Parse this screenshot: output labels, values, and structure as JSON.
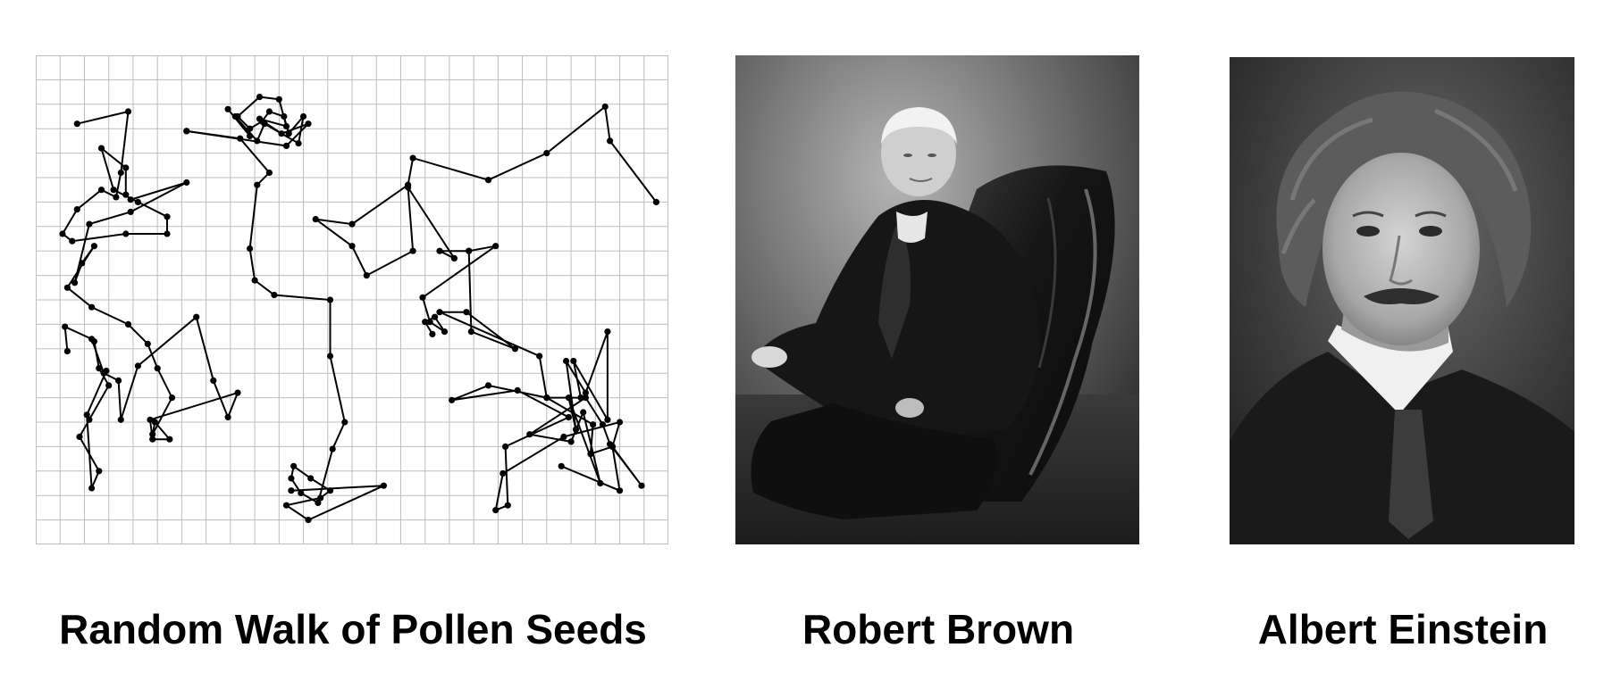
{
  "captions": {
    "walk": "Random Walk of Pollen Seeds",
    "brown": "Robert Brown",
    "einstein": "Albert Einstein"
  },
  "colors": {
    "grid": "#bdbdbd",
    "path": "#000000",
    "photo_dark": "#1a1a1a",
    "photo_mid": "#6e6e6e",
    "photo_light": "#cfcfcf"
  },
  "walk": {
    "grid_columns": 26,
    "grid_rows": 20,
    "paths": [
      [
        [
          1.7,
          2.8
        ],
        [
          3.8,
          2.3
        ],
        [
          3.5,
          4.8
        ],
        [
          3.3,
          5.8
        ],
        [
          2.7,
          5.5
        ],
        [
          1.7,
          6.3
        ],
        [
          1.1,
          7.3
        ],
        [
          1.5,
          7.6
        ],
        [
          3.7,
          7.3
        ],
        [
          5.4,
          7.3
        ],
        [
          5.4,
          6.6
        ],
        [
          4.2,
          6.0
        ],
        [
          3.2,
          5.5
        ],
        [
          2.7,
          3.8
        ],
        [
          3.7,
          4.6
        ],
        [
          3.7,
          5.7
        ],
        [
          3.9,
          5.9
        ],
        [
          6.2,
          5.2
        ],
        [
          3.9,
          6.4
        ],
        [
          2.2,
          6.9
        ],
        [
          1.6,
          9.3
        ],
        [
          1.9,
          8.5
        ],
        [
          2.4,
          7.8
        ],
        [
          1.3,
          9.5
        ],
        [
          2.3,
          10.3
        ],
        [
          3.8,
          11.0
        ],
        [
          4.6,
          11.8
        ],
        [
          5.0,
          12.8
        ],
        [
          5.6,
          14.0
        ],
        [
          4.8,
          15.5
        ],
        [
          4.9,
          15.0
        ],
        [
          5.5,
          15.7
        ],
        [
          4.8,
          15.7
        ],
        [
          4.7,
          14.9
        ],
        [
          8.3,
          13.8
        ],
        [
          7.9,
          14.8
        ],
        [
          7.3,
          13.3
        ],
        [
          6.6,
          10.7
        ],
        [
          4.2,
          12.7
        ],
        [
          3.5,
          14.9
        ],
        [
          3.4,
          13.3
        ],
        [
          2.8,
          13.0
        ],
        [
          2.3,
          11.6
        ],
        [
          1.2,
          11.1
        ],
        [
          1.3,
          12.1
        ]
      ],
      [
        [
          2.4,
          11.7
        ],
        [
          2.6,
          12.8
        ],
        [
          3.0,
          13.5
        ],
        [
          2.2,
          14.9
        ],
        [
          1.8,
          15.6
        ],
        [
          2.6,
          17.0
        ],
        [
          2.3,
          17.7
        ],
        [
          2.1,
          14.7
        ],
        [
          2.9,
          12.9
        ]
      ],
      [
        [
          7.9,
          2.2
        ],
        [
          8.8,
          3.3
        ],
        [
          8.2,
          2.5
        ],
        [
          9.1,
          3.5
        ],
        [
          9.4,
          2.8
        ],
        [
          10.8,
          3.6
        ],
        [
          11.0,
          2.5
        ],
        [
          10.4,
          3.2
        ],
        [
          10.2,
          2.5
        ],
        [
          9.6,
          2.3
        ],
        [
          9.3,
          2.7
        ],
        [
          8.8,
          3.0
        ],
        [
          8.3,
          2.5
        ],
        [
          9.2,
          1.7
        ],
        [
          10.0,
          1.8
        ],
        [
          10.3,
          2.9
        ],
        [
          9.2,
          2.6
        ],
        [
          10.1,
          3.2
        ],
        [
          11.2,
          2.8
        ],
        [
          10.3,
          3.7
        ],
        [
          6.2,
          3.1
        ]
      ],
      [
        [
          6.2,
          3.1
        ],
        [
          8.4,
          3.4
        ],
        [
          9.6,
          4.8
        ],
        [
          9.1,
          5.3
        ],
        [
          8.8,
          7.9
        ],
        [
          9.0,
          9.2
        ],
        [
          9.8,
          9.8
        ],
        [
          12.1,
          10.0
        ],
        [
          12.1,
          12.3
        ],
        [
          12.7,
          15.0
        ],
        [
          12.2,
          16.1
        ],
        [
          11.6,
          18.3
        ],
        [
          10.9,
          17.9
        ],
        [
          10.5,
          17.3
        ],
        [
          10.6,
          16.8
        ],
        [
          11.3,
          17.3
        ],
        [
          12.1,
          17.8
        ],
        [
          11.7,
          18.1
        ],
        [
          10.3,
          18.4
        ],
        [
          11.2,
          19.0
        ],
        [
          14.3,
          17.6
        ],
        [
          10.5,
          17.8
        ]
      ],
      [
        [
          25.5,
          6.0
        ],
        [
          23.6,
          3.5
        ],
        [
          23.4,
          2.1
        ],
        [
          21.0,
          4.0
        ],
        [
          18.6,
          5.1
        ],
        [
          15.5,
          4.2
        ],
        [
          15.3,
          5.3
        ],
        [
          13.0,
          6.9
        ],
        [
          11.5,
          6.7
        ],
        [
          13.0,
          7.8
        ],
        [
          13.6,
          9.0
        ],
        [
          15.5,
          8.0
        ],
        [
          15.3,
          5.4
        ],
        [
          17.2,
          8.3
        ],
        [
          16.6,
          8.0
        ],
        [
          17.8,
          8.0
        ],
        [
          18.9,
          7.8
        ],
        [
          15.9,
          9.9
        ],
        [
          16.2,
          10.9
        ],
        [
          16.8,
          11.3
        ],
        [
          16.4,
          10.7
        ],
        [
          16.0,
          10.9
        ],
        [
          16.3,
          11.4
        ]
      ],
      [
        [
          17.8,
          8.0
        ],
        [
          17.9,
          11.3
        ],
        [
          19.7,
          12.0
        ],
        [
          17.7,
          10.5
        ],
        [
          16.6,
          10.5
        ],
        [
          20.7,
          12.3
        ],
        [
          21.0,
          14.0
        ],
        [
          22.4,
          14.0
        ],
        [
          22.1,
          12.5
        ],
        [
          23.5,
          14.9
        ],
        [
          23.5,
          11.3
        ],
        [
          22.6,
          13.8
        ],
        [
          21.8,
          12.5
        ],
        [
          22.2,
          15.3
        ],
        [
          21.9,
          14.0
        ],
        [
          23.2,
          17.5
        ],
        [
          22.5,
          14.6
        ],
        [
          22.0,
          15.8
        ],
        [
          20.3,
          15.5
        ],
        [
          22.6,
          14.0
        ],
        [
          23.3,
          15.1
        ],
        [
          23.6,
          15.9
        ],
        [
          24.9,
          17.6
        ],
        [
          23.7,
          16.0
        ],
        [
          22.8,
          16.3
        ],
        [
          22.9,
          15.1
        ],
        [
          21.0,
          14.0
        ],
        [
          18.6,
          13.5
        ],
        [
          17.1,
          14.1
        ],
        [
          19.8,
          13.7
        ],
        [
          21.9,
          14.8
        ],
        [
          19.3,
          16.0
        ],
        [
          19.4,
          18.4
        ],
        [
          18.9,
          18.6
        ],
        [
          19.2,
          17.1
        ],
        [
          21.7,
          15.6
        ],
        [
          24.0,
          15.0
        ],
        [
          23.7,
          16.0
        ],
        [
          24.0,
          17.8
        ],
        [
          21.6,
          16.8
        ]
      ]
    ]
  },
  "brown_photo": {
    "subject": "seated-man-in-armchair"
  },
  "einstein_photo": {
    "subject": "portrait-man-curly-hair"
  }
}
